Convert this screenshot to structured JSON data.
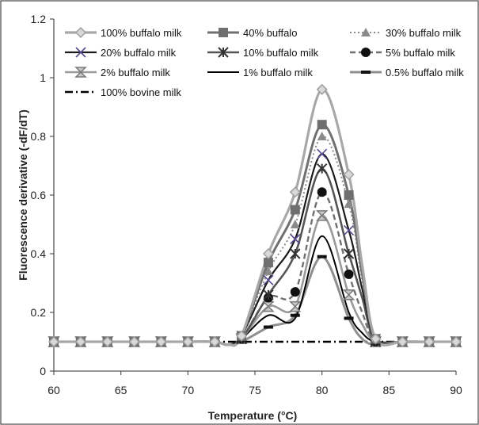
{
  "chart_data": {
    "type": "line",
    "xlabel": "Temperature (°C)",
    "ylabel": "Fluorescence derivative (-dF/dT)",
    "xlim": [
      60,
      90
    ],
    "ylim": [
      0,
      1.2
    ],
    "x_ticks": [
      "60",
      "65",
      "70",
      "75",
      "80",
      "85",
      "90"
    ],
    "y_ticks": [
      "0",
      "0.2",
      "0.4",
      "0.6",
      "0.8",
      "1",
      "1.2"
    ],
    "grid": false,
    "legend_position": "top",
    "x": [
      60,
      62,
      64,
      66,
      68,
      70,
      72,
      73,
      74,
      76,
      78,
      80,
      82,
      83,
      84,
      86,
      88,
      90
    ],
    "series": [
      {
        "name": "100% buffalo milk",
        "color": "#a8a8a8",
        "dash": "",
        "width": 3.2,
        "marker": "diamond",
        "marker_color": "#a0a0a0",
        "values": [
          0.1,
          0.1,
          0.1,
          0.1,
          0.1,
          0.1,
          0.1,
          0.09,
          0.12,
          0.4,
          0.61,
          0.96,
          0.67,
          0.36,
          0.11,
          0.1,
          0.1,
          0.1
        ]
      },
      {
        "name": "40% buffalo",
        "color": "#6f6f6f",
        "dash": "",
        "width": 3,
        "marker": "square",
        "marker_color": "#6f6f6f",
        "values": [
          0.1,
          0.1,
          0.1,
          0.1,
          0.1,
          0.1,
          0.1,
          0.09,
          0.12,
          0.37,
          0.55,
          0.84,
          0.6,
          0.33,
          0.11,
          0.1,
          0.1,
          0.1
        ]
      },
      {
        "name": "30% buffalo milk",
        "color": "#8a8a8a",
        "dash": "2,3",
        "width": 2,
        "marker": "triangle",
        "marker_color": "#8a8a8a",
        "values": [
          0.1,
          0.1,
          0.1,
          0.1,
          0.1,
          0.1,
          0.1,
          0.09,
          0.12,
          0.34,
          0.5,
          0.8,
          0.57,
          0.31,
          0.11,
          0.1,
          0.1,
          0.1
        ]
      },
      {
        "name": "20% buffalo milk",
        "color": "#1a1a1a",
        "dash": "",
        "width": 2.2,
        "marker": "x",
        "marker_color": "#5a4a90",
        "values": [
          0.1,
          0.1,
          0.1,
          0.1,
          0.1,
          0.1,
          0.1,
          0.09,
          0.12,
          0.31,
          0.45,
          0.74,
          0.48,
          0.28,
          0.11,
          0.1,
          0.1,
          0.1
        ]
      },
      {
        "name": "10% buffalo milk",
        "color": "#555555",
        "dash": "",
        "width": 2.6,
        "marker": "star",
        "marker_color": "#333333",
        "values": [
          0.1,
          0.1,
          0.1,
          0.1,
          0.1,
          0.1,
          0.1,
          0.09,
          0.11,
          0.26,
          0.4,
          0.69,
          0.4,
          0.25,
          0.1,
          0.1,
          0.1,
          0.1
        ]
      },
      {
        "name": "5% buffalo milk",
        "color": "#707070",
        "dash": "7,4",
        "width": 2.4,
        "marker": "circle",
        "marker_color": "#111111",
        "values": [
          0.1,
          0.1,
          0.1,
          0.1,
          0.1,
          0.1,
          0.1,
          0.09,
          0.11,
          0.25,
          0.27,
          0.61,
          0.33,
          0.2,
          0.1,
          0.1,
          0.1,
          0.1
        ]
      },
      {
        "name": "2% buffalo milk",
        "color": "#9a9a9a",
        "dash": "",
        "width": 2.6,
        "marker": "hourglass",
        "marker_color": "#7a7a7a",
        "values": [
          0.1,
          0.1,
          0.1,
          0.1,
          0.1,
          0.1,
          0.1,
          0.09,
          0.11,
          0.22,
          0.22,
          0.53,
          0.26,
          0.16,
          0.1,
          0.1,
          0.1,
          0.1
        ]
      },
      {
        "name": "1% buffalo milk",
        "color": "#000000",
        "dash": "",
        "width": 2,
        "marker": "none",
        "marker_color": "#000000",
        "values": [
          0.1,
          0.1,
          0.1,
          0.1,
          0.1,
          0.1,
          0.1,
          0.09,
          0.11,
          0.19,
          0.18,
          0.46,
          0.2,
          0.13,
          0.1,
          0.1,
          0.1,
          0.1
        ]
      },
      {
        "name": "0.5% buffalo milk",
        "color": "#8f8f8f",
        "dash": "",
        "width": 3,
        "marker": "dash",
        "marker_color": "#111111",
        "values": [
          0.1,
          0.1,
          0.1,
          0.1,
          0.1,
          0.1,
          0.1,
          0.09,
          0.1,
          0.15,
          0.19,
          0.39,
          0.18,
          0.11,
          0.09,
          0.1,
          0.1,
          0.1
        ]
      },
      {
        "name": "100% bovine milk",
        "color": "#000000",
        "dash": "10,4,2,4",
        "width": 2.6,
        "marker": "none",
        "marker_color": "#000000",
        "values": [
          0.1,
          0.1,
          0.1,
          0.1,
          0.1,
          0.1,
          0.1,
          0.1,
          0.1,
          0.1,
          0.1,
          0.1,
          0.1,
          0.1,
          0.1,
          0.1,
          0.1,
          0.1
        ]
      }
    ]
  }
}
